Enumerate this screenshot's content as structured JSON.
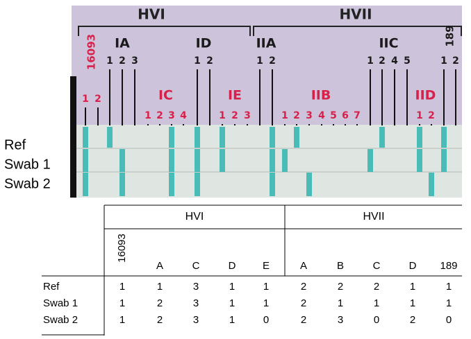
{
  "strip": {
    "regions": [
      "HVI",
      "HVII"
    ],
    "probes": [
      {
        "label": "16093",
        "numbers": [
          1,
          2
        ]
      },
      {
        "label": "IA",
        "numbers": [
          1,
          2,
          3
        ]
      },
      {
        "label": "IC",
        "numbers": [
          1,
          2,
          3,
          4
        ]
      },
      {
        "label": "ID",
        "numbers": [
          1,
          2
        ]
      },
      {
        "label": "IE",
        "numbers": [
          1,
          2,
          3
        ]
      },
      {
        "label": "IIA",
        "numbers": [
          1,
          2
        ]
      },
      {
        "label": "IIB",
        "numbers": [
          1,
          2,
          3,
          4,
          5,
          6,
          7
        ]
      },
      {
        "label": "IIC",
        "numbers": [
          1,
          2,
          4,
          5
        ]
      },
      {
        "label": "IID",
        "numbers": [
          1,
          2
        ]
      },
      {
        "label": "189",
        "numbers": [
          1,
          2
        ]
      }
    ],
    "rows": [
      "Ref",
      "Swab 1",
      "Swab 2"
    ]
  },
  "table": {
    "groups": [
      "HVI",
      "HVII"
    ],
    "columns": [
      "16093",
      "A",
      "C",
      "D",
      "E",
      "A",
      "B",
      "C",
      "D",
      "189"
    ],
    "rows": [
      {
        "label": "Ref",
        "values": [
          1,
          1,
          3,
          1,
          1,
          2,
          2,
          2,
          1,
          1
        ]
      },
      {
        "label": "Swab 1",
        "values": [
          1,
          2,
          3,
          1,
          1,
          2,
          1,
          1,
          1,
          1
        ]
      },
      {
        "label": "Swab 2",
        "values": [
          1,
          2,
          3,
          1,
          0,
          2,
          3,
          0,
          2,
          0
        ]
      }
    ]
  }
}
